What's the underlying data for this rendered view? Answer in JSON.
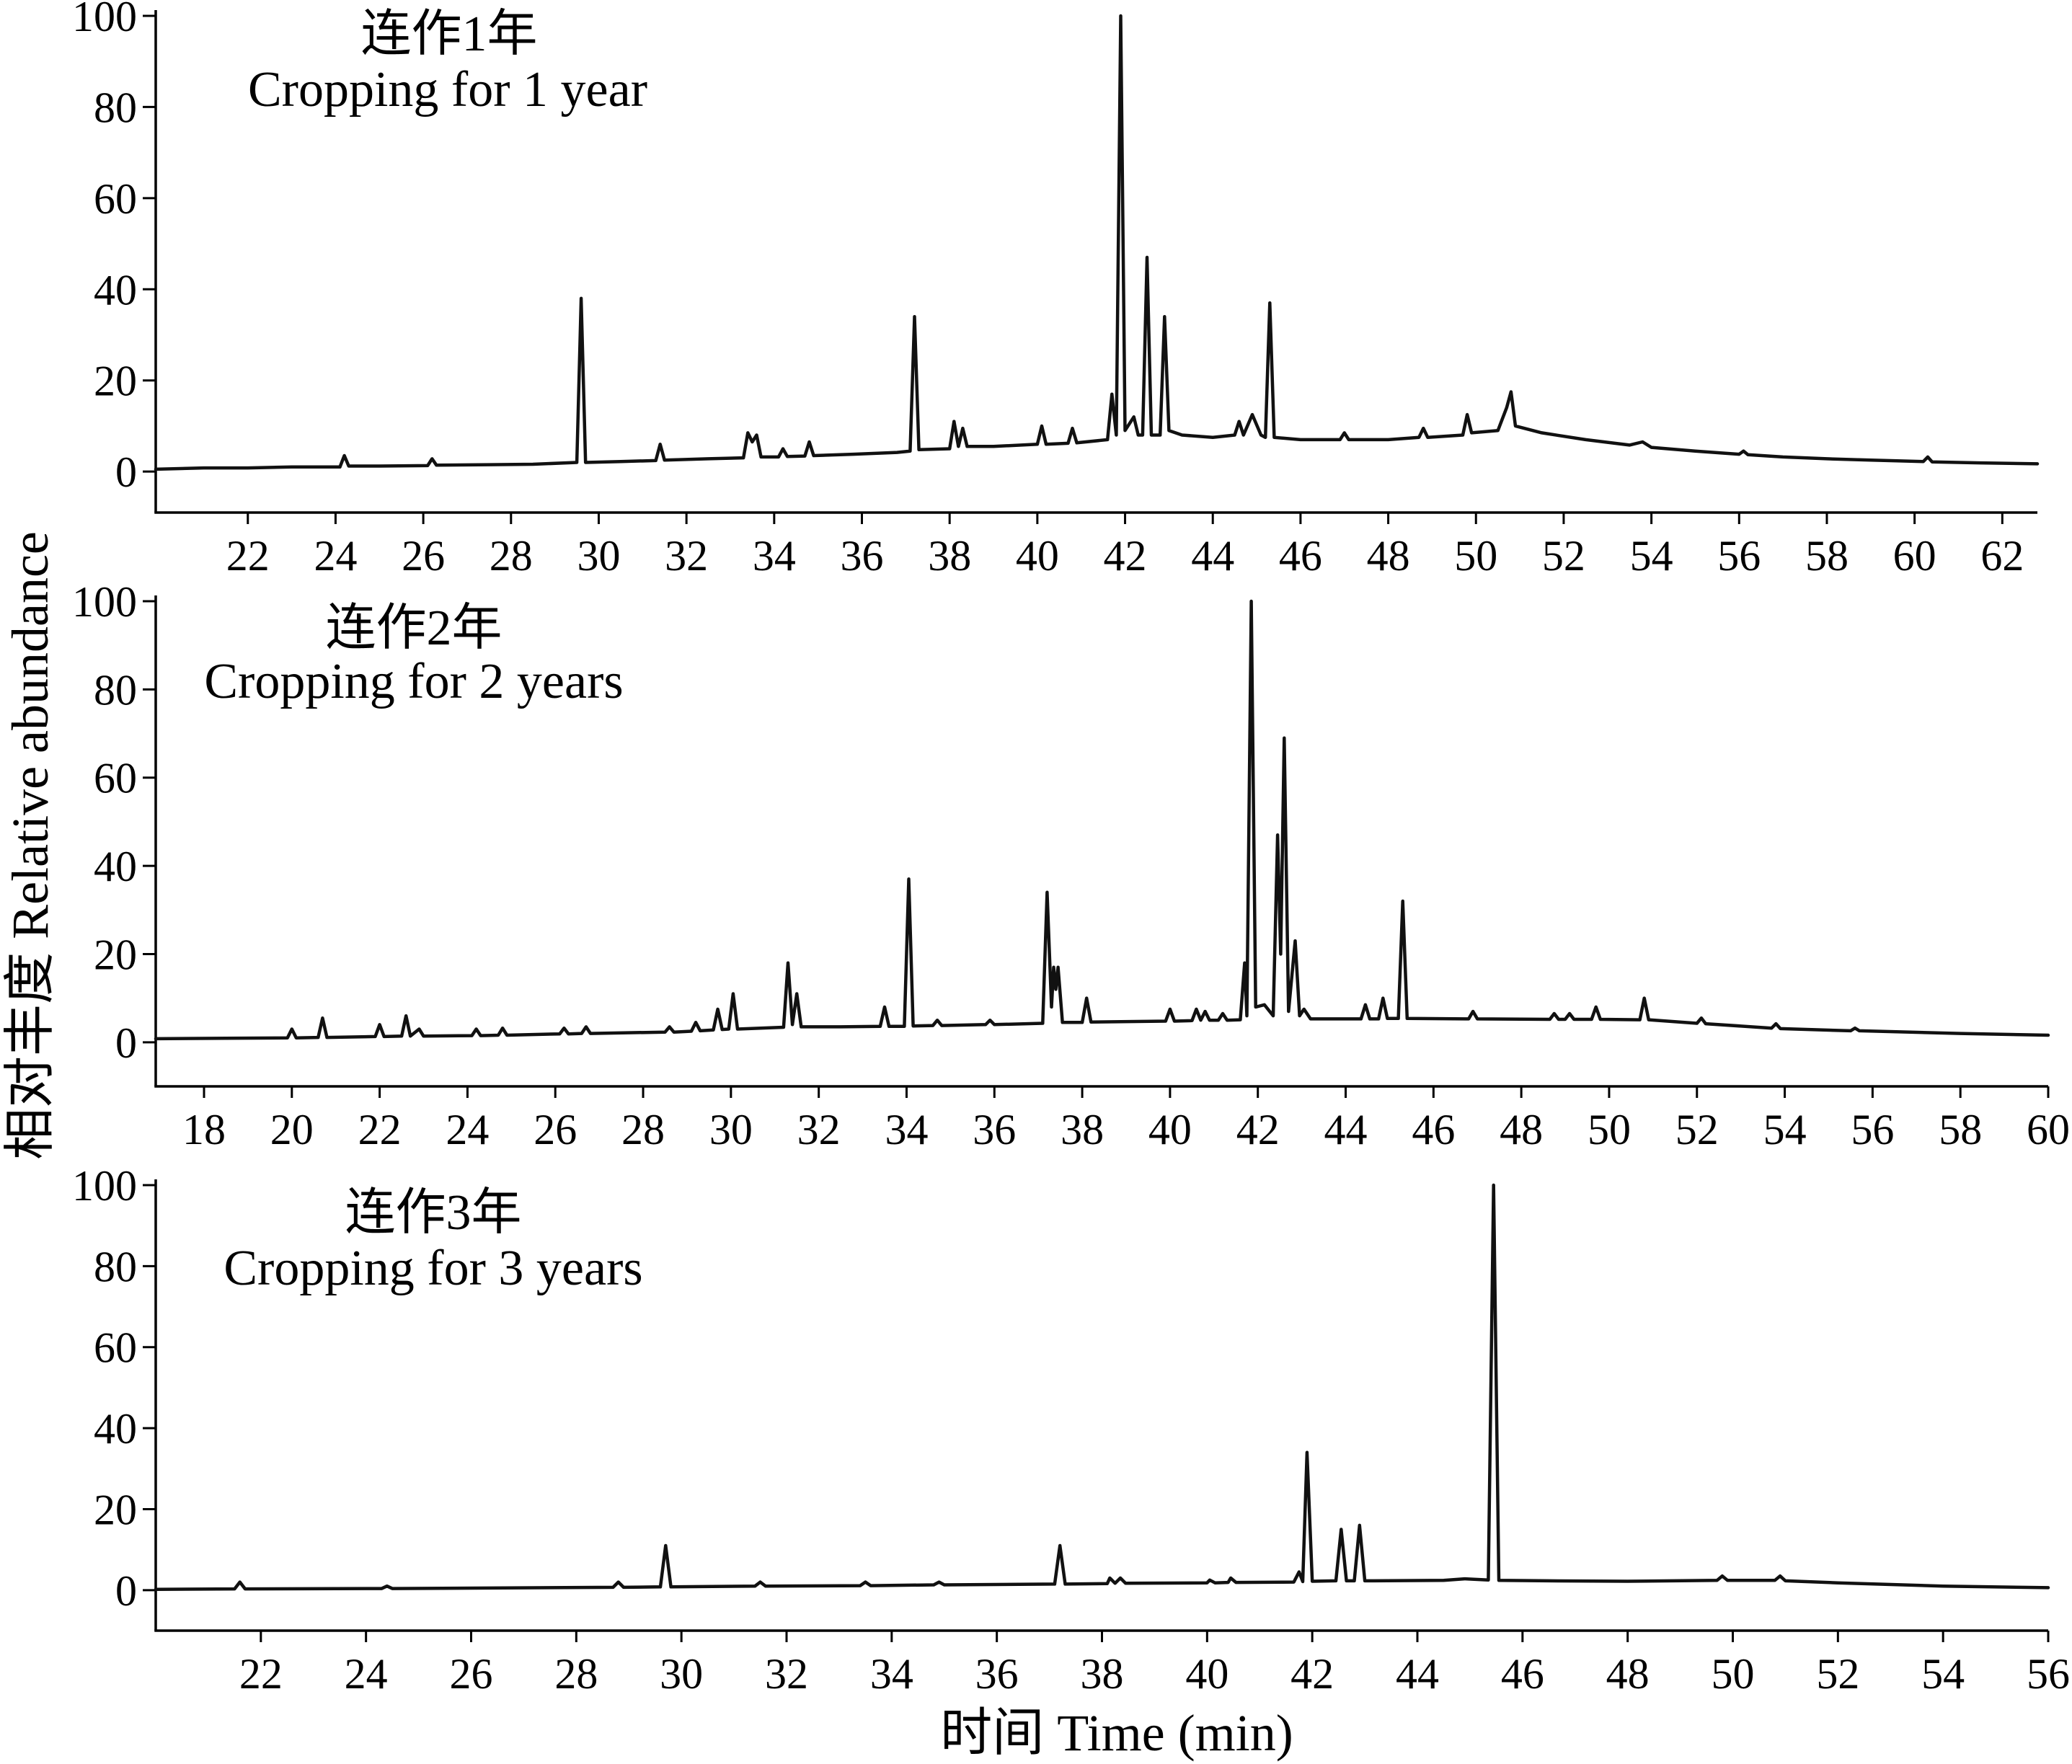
{
  "figure": {
    "xlabel": "时间 Time (min)",
    "ylabel": "相对丰度 Relative abundance"
  },
  "colors": {
    "line": "#111111",
    "axis": "#000000",
    "background": "#ffffff"
  },
  "chart_data": [
    {
      "type": "line",
      "annotation_cn": "连作1年",
      "annotation_en": "Cropping for 1 year",
      "grid": false,
      "xlim": [
        19.9,
        62.8
      ],
      "ylim": [
        -9,
        100
      ],
      "xticks": [
        22,
        24,
        26,
        28,
        30,
        32,
        34,
        36,
        38,
        40,
        42,
        44,
        46,
        48,
        50,
        52,
        54,
        56,
        58,
        60,
        62
      ],
      "yticks": [
        0,
        20,
        40,
        60,
        80,
        100
      ],
      "series": [
        {
          "x": [
            19.9,
            21.0,
            22.0,
            23.0,
            24.1,
            24.2,
            24.3,
            25.0,
            26.1,
            26.2,
            26.3,
            27.5,
            28.5,
            29.5,
            29.6,
            29.7,
            30.5,
            31.3,
            31.4,
            31.5,
            32.5,
            33.3,
            33.4,
            33.5,
            33.6,
            33.7,
            34.1,
            34.2,
            34.3,
            34.7,
            34.8,
            34.9,
            35.8,
            36.8,
            37.1,
            37.2,
            37.3,
            38.0,
            38.1,
            38.2,
            38.3,
            38.4,
            39.0,
            40.0,
            40.1,
            40.2,
            40.7,
            40.8,
            40.9,
            41.6,
            41.7,
            41.8,
            41.9,
            42.0,
            42.2,
            42.3,
            42.4,
            42.5,
            42.6,
            42.8,
            42.9,
            43.0,
            43.3,
            44.0,
            44.5,
            44.6,
            44.7,
            44.9,
            45.1,
            45.2,
            45.3,
            45.4,
            46.0,
            46.9,
            47.0,
            47.1,
            48.0,
            48.7,
            48.8,
            48.9,
            49.7,
            49.8,
            49.9,
            50.5,
            50.7,
            50.8,
            50.9,
            51.5,
            52.5,
            53.5,
            53.8,
            54.0,
            55.0,
            56.0,
            56.1,
            56.2,
            57.0,
            58.0,
            59.0,
            60.2,
            60.3,
            60.4,
            61.5,
            62.8
          ],
          "y": [
            0.5,
            0.8,
            0.8,
            1.0,
            1.0,
            3.5,
            1.2,
            1.2,
            1.3,
            2.8,
            1.4,
            1.5,
            1.6,
            2.0,
            38,
            2.0,
            2.2,
            2.4,
            6,
            2.5,
            2.8,
            3.0,
            8.5,
            6.5,
            8,
            3.2,
            3.2,
            5,
            3.3,
            3.4,
            6.5,
            3.5,
            3.8,
            4.2,
            4.5,
            34,
            4.8,
            5.0,
            11,
            5.5,
            9.5,
            5.5,
            5.5,
            6.0,
            10,
            6.0,
            6.2,
            9.5,
            6.3,
            7.0,
            17,
            8,
            100,
            9,
            12,
            8,
            8,
            47,
            8,
            8,
            34,
            9,
            8,
            7.5,
            8,
            11,
            8,
            12.5,
            8,
            7.5,
            37,
            7.5,
            7.0,
            7.0,
            8.5,
            7.0,
            7.0,
            7.5,
            9.5,
            7.5,
            8,
            12.5,
            8.5,
            9,
            14,
            17.5,
            10,
            8.5,
            7.0,
            5.8,
            6.5,
            5.3,
            4.5,
            3.8,
            4.5,
            3.7,
            3.2,
            2.8,
            2.5,
            2.2,
            3.2,
            2.1,
            1.9,
            1.7
          ]
        }
      ]
    },
    {
      "type": "line",
      "annotation_cn": "连作2年",
      "annotation_en": "Cropping for 2 years",
      "grid": false,
      "xlim": [
        16.9,
        60
      ],
      "ylim": [
        -10,
        100
      ],
      "xticks": [
        18,
        20,
        22,
        24,
        26,
        28,
        30,
        32,
        34,
        36,
        38,
        40,
        42,
        44,
        46,
        48,
        50,
        52,
        54,
        56,
        58,
        60
      ],
      "yticks": [
        0,
        20,
        40,
        60,
        80,
        100
      ],
      "series": [
        {
          "x": [
            16.9,
            18.5,
            19.9,
            20.0,
            20.1,
            20.6,
            20.7,
            20.8,
            21.9,
            22.0,
            22.1,
            22.5,
            22.6,
            22.7,
            22.9,
            23.0,
            24.1,
            24.2,
            24.3,
            24.7,
            24.8,
            24.9,
            26.1,
            26.2,
            26.3,
            26.6,
            26.7,
            26.8,
            28.5,
            28.6,
            28.7,
            29.1,
            29.2,
            29.3,
            29.6,
            29.7,
            29.8,
            29.95,
            30.05,
            30.15,
            31.2,
            31.3,
            31.4,
            31.5,
            31.6,
            32.5,
            33.4,
            33.5,
            33.6,
            33.95,
            34.05,
            34.15,
            34.6,
            34.7,
            34.8,
            35.8,
            35.9,
            36.0,
            37.1,
            37.2,
            37.3,
            37.35,
            37.4,
            37.45,
            37.55,
            38.0,
            38.1,
            38.2,
            39.9,
            40.0,
            40.1,
            40.5,
            40.6,
            40.7,
            40.8,
            40.9,
            41.1,
            41.2,
            41.3,
            41.6,
            41.7,
            41.75,
            41.85,
            41.95,
            42.15,
            42.35,
            42.45,
            42.52,
            42.6,
            42.7,
            42.85,
            42.95,
            43.05,
            43.2,
            44.35,
            44.45,
            44.55,
            44.75,
            44.85,
            44.95,
            45.2,
            45.3,
            45.4,
            46.8,
            46.9,
            47.0,
            48.65,
            48.75,
            48.85,
            49.0,
            49.1,
            49.2,
            49.6,
            49.7,
            49.8,
            50.7,
            50.8,
            50.9,
            52.0,
            52.1,
            52.2,
            53.7,
            53.8,
            53.9,
            55.5,
            55.6,
            55.7,
            58.0,
            60.0
          ],
          "y": [
            0.8,
            0.9,
            1.0,
            3,
            1.0,
            1.1,
            5.5,
            1.1,
            1.3,
            4,
            1.3,
            1.4,
            6,
            1.4,
            3,
            1.4,
            1.5,
            3,
            1.5,
            1.6,
            3.2,
            1.6,
            1.9,
            3.2,
            1.9,
            2.0,
            3.5,
            2.0,
            2.3,
            3.5,
            2.3,
            2.5,
            4.5,
            2.6,
            2.8,
            7.5,
            2.9,
            3.0,
            11,
            3.0,
            3.4,
            18,
            4,
            11,
            3.5,
            3.5,
            3.6,
            8,
            3.6,
            3.6,
            37,
            3.7,
            3.8,
            5,
            3.8,
            4.0,
            5,
            4.0,
            4.3,
            34,
            8,
            17,
            12,
            17,
            4.5,
            4.5,
            10,
            4.6,
            4.8,
            7.5,
            4.8,
            4.9,
            7.5,
            5,
            7,
            5,
            5,
            6.5,
            5,
            5.1,
            18,
            6,
            100,
            8,
            8.5,
            6,
            47,
            20,
            69,
            7,
            23,
            6,
            7.5,
            5.3,
            5.3,
            8.5,
            5.3,
            5.3,
            10,
            5.4,
            5.4,
            32,
            5.4,
            5.3,
            7,
            5.3,
            5.2,
            6.5,
            5.2,
            5.2,
            6.5,
            5.2,
            5.2,
            8,
            5.2,
            5.1,
            10,
            5.1,
            4.3,
            5.5,
            4.2,
            3.2,
            4.2,
            3.1,
            2.6,
            3.2,
            2.6,
            2.0,
            1.6
          ]
        }
      ]
    },
    {
      "type": "line",
      "annotation_cn": "连作3年",
      "annotation_en": "Cropping for 3 years",
      "grid": false,
      "xlim": [
        20,
        56
      ],
      "ylim": [
        -10,
        100
      ],
      "xticks": [
        22,
        24,
        26,
        28,
        30,
        32,
        34,
        36,
        38,
        40,
        42,
        44,
        46,
        48,
        50,
        52,
        54,
        56
      ],
      "yticks": [
        0,
        20,
        40,
        60,
        80,
        100
      ],
      "series": [
        {
          "x": [
            20.0,
            21.5,
            21.6,
            21.7,
            24.3,
            24.4,
            24.5,
            28.7,
            28.8,
            28.9,
            29.6,
            29.7,
            29.8,
            31.4,
            31.5,
            31.6,
            33.4,
            33.5,
            33.6,
            34.8,
            34.9,
            35.0,
            37.1,
            37.2,
            37.3,
            38.1,
            38.15,
            38.25,
            38.35,
            38.45,
            40.0,
            40.05,
            40.15,
            40.4,
            40.45,
            40.55,
            41.65,
            41.75,
            41.82,
            41.9,
            42.0,
            42.45,
            42.55,
            42.65,
            42.8,
            42.9,
            43.0,
            44.5,
            44.9,
            45.35,
            45.45,
            45.55,
            46.5,
            48.0,
            49.7,
            49.8,
            49.9,
            50.8,
            50.9,
            51.0,
            52.0,
            54.0,
            56.0
          ],
          "y": [
            0.2,
            0.3,
            2,
            0.3,
            0.4,
            1,
            0.4,
            0.7,
            2,
            0.7,
            0.8,
            11,
            0.8,
            1.0,
            2,
            1.0,
            1.1,
            2,
            1.1,
            1.3,
            2,
            1.3,
            1.5,
            11,
            1.5,
            1.6,
            3,
            1.7,
            3,
            1.7,
            1.8,
            2.5,
            1.8,
            1.9,
            3,
            1.9,
            2.0,
            4.5,
            2.1,
            34,
            2.2,
            2.3,
            15,
            2.3,
            2.3,
            16,
            2.3,
            2.4,
            2.8,
            2.5,
            100,
            2.4,
            2.3,
            2.2,
            2.4,
            3.5,
            2.4,
            2.4,
            3.5,
            2.3,
            1.8,
            1.0,
            0.6
          ]
        }
      ]
    }
  ]
}
